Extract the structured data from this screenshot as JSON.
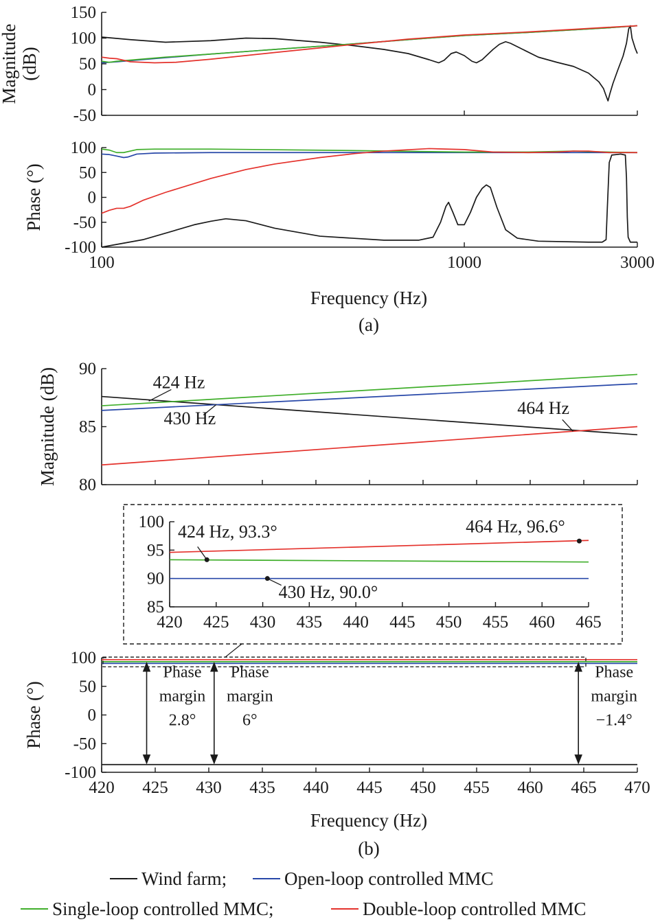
{
  "colors": {
    "wind_farm": "#1a1a1a",
    "open_loop": "#2747a8",
    "single_loop": "#3fae2a",
    "double_loop": "#e4312b",
    "axis": "#1a1a1a"
  },
  "figure": {
    "panel_a_caption": "(a)",
    "panel_b_caption": "(b)",
    "legend": [
      {
        "label": "Wind farm;",
        "series": "wind_farm"
      },
      {
        "label": "Open-loop controlled MMC",
        "series": "open_loop"
      },
      {
        "label": "Single-loop controlled MMC;",
        "series": "single_loop"
      },
      {
        "label": "Double-loop controlled MMC",
        "series": "double_loop"
      }
    ]
  },
  "chart_data": [
    {
      "id": "a_mag",
      "type": "line",
      "xscale": "log",
      "xlim": [
        100,
        3000
      ],
      "ylim": [
        -50,
        150
      ],
      "yticks": [
        150,
        100,
        50,
        0,
        -50
      ],
      "ylabel_lines": [
        "Magnitude",
        "(dB)"
      ],
      "series": [
        {
          "key": "wind_farm",
          "points": [
            [
              100,
              102
            ],
            [
              120,
              97
            ],
            [
              150,
              92
            ],
            [
              200,
              95
            ],
            [
              250,
              100
            ],
            [
              300,
              99
            ],
            [
              400,
              92
            ],
            [
              500,
              85
            ],
            [
              600,
              78
            ],
            [
              700,
              70
            ],
            [
              800,
              58
            ],
            [
              850,
              52
            ],
            [
              880,
              57
            ],
            [
              920,
              70
            ],
            [
              950,
              73
            ],
            [
              1000,
              66
            ],
            [
              1050,
              55
            ],
            [
              1080,
              52
            ],
            [
              1120,
              58
            ],
            [
              1200,
              78
            ],
            [
              1250,
              88
            ],
            [
              1300,
              93
            ],
            [
              1340,
              90
            ],
            [
              1450,
              78
            ],
            [
              1600,
              63
            ],
            [
              1800,
              53
            ],
            [
              2000,
              45
            ],
            [
              2200,
              32
            ],
            [
              2350,
              15
            ],
            [
              2420,
              2
            ],
            [
              2460,
              -12
            ],
            [
              2490,
              -22
            ],
            [
              2520,
              -8
            ],
            [
              2570,
              12
            ],
            [
              2650,
              38
            ],
            [
              2740,
              65
            ],
            [
              2800,
              90
            ],
            [
              2840,
              118
            ],
            [
              2870,
              124
            ],
            [
              2900,
              100
            ],
            [
              2960,
              80
            ],
            [
              3000,
              70
            ]
          ]
        },
        {
          "key": "open_loop",
          "points": [
            [
              100,
              52
            ],
            [
              110,
              54
            ],
            [
              150,
              62
            ],
            [
              200,
              69
            ],
            [
              300,
              78
            ],
            [
              500,
              89
            ],
            [
              700,
              97
            ],
            [
              1000,
              105
            ],
            [
              1500,
              111
            ],
            [
              2000,
              116
            ],
            [
              2500,
              120
            ],
            [
              3000,
              124
            ]
          ]
        },
        {
          "key": "single_loop",
          "points": [
            [
              100,
              55
            ],
            [
              105,
              53
            ],
            [
              110,
              55
            ],
            [
              150,
              63
            ],
            [
              200,
              69
            ],
            [
              300,
              78
            ],
            [
              500,
              89
            ],
            [
              700,
              97
            ],
            [
              1000,
              105
            ],
            [
              1500,
              111
            ],
            [
              2000,
              116
            ],
            [
              2500,
              120
            ],
            [
              3000,
              124
            ]
          ]
        },
        {
          "key": "double_loop",
          "points": [
            [
              100,
              63
            ],
            [
              105,
              61
            ],
            [
              110,
              60
            ],
            [
              120,
              54
            ],
            [
              140,
              52
            ],
            [
              160,
              53
            ],
            [
              200,
              59
            ],
            [
              300,
              72
            ],
            [
              400,
              81
            ],
            [
              500,
              88
            ],
            [
              700,
              98
            ],
            [
              1000,
              106
            ],
            [
              1500,
              112
            ],
            [
              2000,
              117
            ],
            [
              2500,
              121
            ],
            [
              3000,
              124
            ]
          ]
        }
      ]
    },
    {
      "id": "a_phase",
      "type": "line",
      "xscale": "log",
      "xlim": [
        100,
        3000
      ],
      "ylim": [
        -100,
        100
      ],
      "xticks": [
        100,
        1000,
        3000
      ],
      "yticks": [
        100,
        50,
        0,
        -50,
        -100
      ],
      "ylabel": "Phase (°)",
      "xlabel": "Frequency (Hz)",
      "series": [
        {
          "key": "wind_farm",
          "points": [
            [
              100,
              -100
            ],
            [
              130,
              -85
            ],
            [
              160,
              -66
            ],
            [
              180,
              -55
            ],
            [
              200,
              -48
            ],
            [
              220,
              -43
            ],
            [
              250,
              -47
            ],
            [
              300,
              -62
            ],
            [
              400,
              -78
            ],
            [
              600,
              -86
            ],
            [
              750,
              -86
            ],
            [
              820,
              -80
            ],
            [
              860,
              -50
            ],
            [
              890,
              -18
            ],
            [
              905,
              -10
            ],
            [
              930,
              -30
            ],
            [
              960,
              -55
            ],
            [
              1000,
              -55
            ],
            [
              1040,
              -30
            ],
            [
              1080,
              0
            ],
            [
              1120,
              18
            ],
            [
              1150,
              25
            ],
            [
              1180,
              20
            ],
            [
              1230,
              -20
            ],
            [
              1300,
              -65
            ],
            [
              1400,
              -82
            ],
            [
              1600,
              -88
            ],
            [
              2200,
              -90
            ],
            [
              2400,
              -90
            ],
            [
              2460,
              -85
            ],
            [
              2480,
              -20
            ],
            [
              2510,
              70
            ],
            [
              2550,
              85
            ],
            [
              2700,
              87
            ],
            [
              2780,
              85
            ],
            [
              2800,
              40
            ],
            [
              2815,
              -40
            ],
            [
              2830,
              -80
            ],
            [
              2870,
              -90
            ],
            [
              3000,
              -90
            ]
          ]
        },
        {
          "key": "open_loop",
          "points": [
            [
              100,
              87
            ],
            [
              105,
              86
            ],
            [
              110,
              83
            ],
            [
              115,
              80
            ],
            [
              118,
              81
            ],
            [
              125,
              87
            ],
            [
              140,
              89
            ],
            [
              200,
              90
            ],
            [
              500,
              90
            ],
            [
              1000,
              90
            ],
            [
              2000,
              90
            ],
            [
              3000,
              90
            ]
          ]
        },
        {
          "key": "single_loop",
          "points": [
            [
              100,
              97
            ],
            [
              105,
              95
            ],
            [
              110,
              90
            ],
            [
              115,
              90
            ],
            [
              125,
              96
            ],
            [
              140,
              97
            ],
            [
              200,
              97
            ],
            [
              500,
              94
            ],
            [
              1000,
              91
            ],
            [
              1500,
              91
            ],
            [
              2000,
              93
            ],
            [
              2500,
              91
            ],
            [
              3000,
              90
            ]
          ]
        },
        {
          "key": "double_loop",
          "points": [
            [
              100,
              -32
            ],
            [
              105,
              -26
            ],
            [
              110,
              -22
            ],
            [
              115,
              -22
            ],
            [
              120,
              -18
            ],
            [
              130,
              -6
            ],
            [
              150,
              10
            ],
            [
              200,
              38
            ],
            [
              250,
              56
            ],
            [
              300,
              67
            ],
            [
              400,
              80
            ],
            [
              500,
              88
            ],
            [
              600,
              93
            ],
            [
              800,
              98
            ],
            [
              1000,
              96
            ],
            [
              1200,
              91
            ],
            [
              1500,
              90
            ],
            [
              1800,
              91
            ],
            [
              2000,
              93
            ],
            [
              2200,
              93
            ],
            [
              2500,
              90
            ],
            [
              3000,
              90
            ]
          ]
        }
      ]
    },
    {
      "id": "b_mag",
      "type": "line",
      "xscale": "linear",
      "xlim": [
        420,
        470
      ],
      "ylim": [
        80,
        90
      ],
      "yticks": [
        90,
        85,
        80
      ],
      "ylabel": "Magnitude (dB)",
      "series": [
        {
          "key": "wind_farm",
          "points": [
            [
              420,
              87.6
            ],
            [
              470,
              84.3
            ]
          ]
        },
        {
          "key": "open_loop",
          "points": [
            [
              420,
              86.4
            ],
            [
              470,
              88.7
            ]
          ]
        },
        {
          "key": "single_loop",
          "points": [
            [
              420,
              86.8
            ],
            [
              470,
              89.5
            ]
          ]
        },
        {
          "key": "double_loop",
          "points": [
            [
              420,
              81.7
            ],
            [
              470,
              85.0
            ]
          ]
        }
      ],
      "annotations": [
        {
          "text": "424 Hz",
          "x": 424
        },
        {
          "text": "430 Hz",
          "x": 430
        },
        {
          "text": "464 Hz",
          "x": 464
        }
      ]
    },
    {
      "id": "b_inset",
      "type": "line",
      "xscale": "linear",
      "xlim": [
        420,
        465
      ],
      "ylim": [
        85,
        100
      ],
      "xticks": [
        420,
        425,
        430,
        435,
        440,
        445,
        450,
        455,
        460,
        465
      ],
      "yticks": [
        100,
        95,
        90,
        85
      ],
      "series": [
        {
          "key": "open_loop",
          "points": [
            [
              420,
              90.0
            ],
            [
              465,
              90.0
            ]
          ]
        },
        {
          "key": "single_loop",
          "points": [
            [
              420,
              93.3
            ],
            [
              465,
              92.9
            ]
          ]
        },
        {
          "key": "double_loop",
          "points": [
            [
              420,
              94.6
            ],
            [
              465,
              96.7
            ]
          ]
        }
      ],
      "markers": [
        {
          "text": "424 Hz, 93.3°",
          "x": 424,
          "y": 93.3
        },
        {
          "text": "430 Hz, 90.0°",
          "x": 430.5,
          "y": 90.0
        },
        {
          "text": "464 Hz, 96.6°",
          "x": 464,
          "y": 96.6
        }
      ]
    },
    {
      "id": "b_phase",
      "type": "line",
      "xscale": "linear",
      "xlim": [
        420,
        470
      ],
      "ylim": [
        -100,
        100
      ],
      "xticks": [
        420,
        425,
        430,
        435,
        440,
        445,
        450,
        455,
        460,
        465,
        470
      ],
      "yticks": [
        100,
        50,
        0,
        -50,
        -100
      ],
      "ylabel": "Phase (°)",
      "xlabel": "Frequency (Hz)",
      "series": [
        {
          "key": "wind_farm",
          "points": [
            [
              420,
              -86.5
            ],
            [
              470,
              -86.5
            ]
          ]
        },
        {
          "key": "open_loop",
          "points": [
            [
              420,
              90
            ],
            [
              470,
              90
            ]
          ]
        },
        {
          "key": "single_loop",
          "points": [
            [
              420,
              93
            ],
            [
              470,
              93
            ]
          ]
        },
        {
          "key": "double_loop",
          "points": [
            [
              420,
              96.5
            ],
            [
              470,
              96.5
            ]
          ]
        }
      ],
      "phase_margins": [
        {
          "x": 424.2,
          "lines": [
            "Phase",
            "margin",
            "2.8°"
          ]
        },
        {
          "x": 430.5,
          "lines": [
            "Phase",
            "margin",
            "6°"
          ]
        },
        {
          "x": 464.5,
          "lines": [
            "Phase",
            "margin",
            "−1.4°"
          ]
        }
      ]
    }
  ]
}
